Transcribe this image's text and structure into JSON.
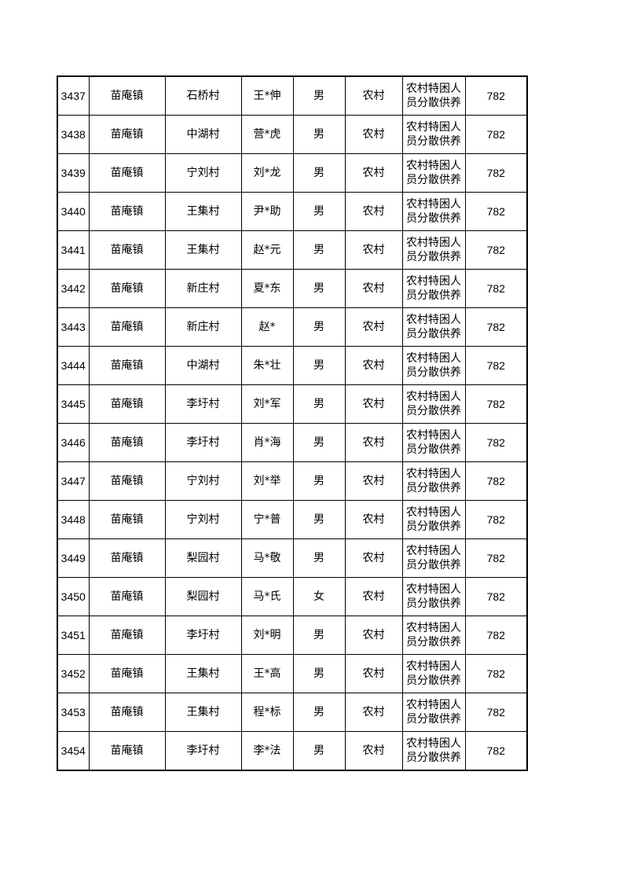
{
  "table": {
    "rows": [
      [
        "3437",
        "苗庵镇",
        "石桥村",
        "王*伸",
        "男",
        "农村",
        "农村特困人员分散供养",
        "782"
      ],
      [
        "3438",
        "苗庵镇",
        "中湖村",
        "营*虎",
        "男",
        "农村",
        "农村特困人员分散供养",
        "782"
      ],
      [
        "3439",
        "苗庵镇",
        "宁刘村",
        "刘*龙",
        "男",
        "农村",
        "农村特困人员分散供养",
        "782"
      ],
      [
        "3440",
        "苗庵镇",
        "王集村",
        "尹*助",
        "男",
        "农村",
        "农村特困人员分散供养",
        "782"
      ],
      [
        "3441",
        "苗庵镇",
        "王集村",
        "赵*元",
        "男",
        "农村",
        "农村特困人员分散供养",
        "782"
      ],
      [
        "3442",
        "苗庵镇",
        "新庄村",
        "夏*东",
        "男",
        "农村",
        "农村特困人员分散供养",
        "782"
      ],
      [
        "3443",
        "苗庵镇",
        "新庄村",
        "赵*",
        "男",
        "农村",
        "农村特困人员分散供养",
        "782"
      ],
      [
        "3444",
        "苗庵镇",
        "中湖村",
        "朱*壮",
        "男",
        "农村",
        "农村特困人员分散供养",
        "782"
      ],
      [
        "3445",
        "苗庵镇",
        "李圩村",
        "刘*军",
        "男",
        "农村",
        "农村特困人员分散供养",
        "782"
      ],
      [
        "3446",
        "苗庵镇",
        "李圩村",
        "肖*海",
        "男",
        "农村",
        "农村特困人员分散供养",
        "782"
      ],
      [
        "3447",
        "苗庵镇",
        "宁刘村",
        "刘*举",
        "男",
        "农村",
        "农村特困人员分散供养",
        "782"
      ],
      [
        "3448",
        "苗庵镇",
        "宁刘村",
        "宁*普",
        "男",
        "农村",
        "农村特困人员分散供养",
        "782"
      ],
      [
        "3449",
        "苗庵镇",
        "梨园村",
        "马*敬",
        "男",
        "农村",
        "农村特困人员分散供养",
        "782"
      ],
      [
        "3450",
        "苗庵镇",
        "梨园村",
        "马*氏",
        "女",
        "农村",
        "农村特困人员分散供养",
        "782"
      ],
      [
        "3451",
        "苗庵镇",
        "李圩村",
        "刘*明",
        "男",
        "农村",
        "农村特困人员分散供养",
        "782"
      ],
      [
        "3452",
        "苗庵镇",
        "王集村",
        "王*高",
        "男",
        "农村",
        "农村特困人员分散供养",
        "782"
      ],
      [
        "3453",
        "苗庵镇",
        "王集村",
        "程*标",
        "男",
        "农村",
        "农村特困人员分散供养",
        "782"
      ],
      [
        "3454",
        "苗庵镇",
        "李圩村",
        "李*法",
        "男",
        "农村",
        "农村特困人员分散供养",
        "782"
      ]
    ]
  }
}
